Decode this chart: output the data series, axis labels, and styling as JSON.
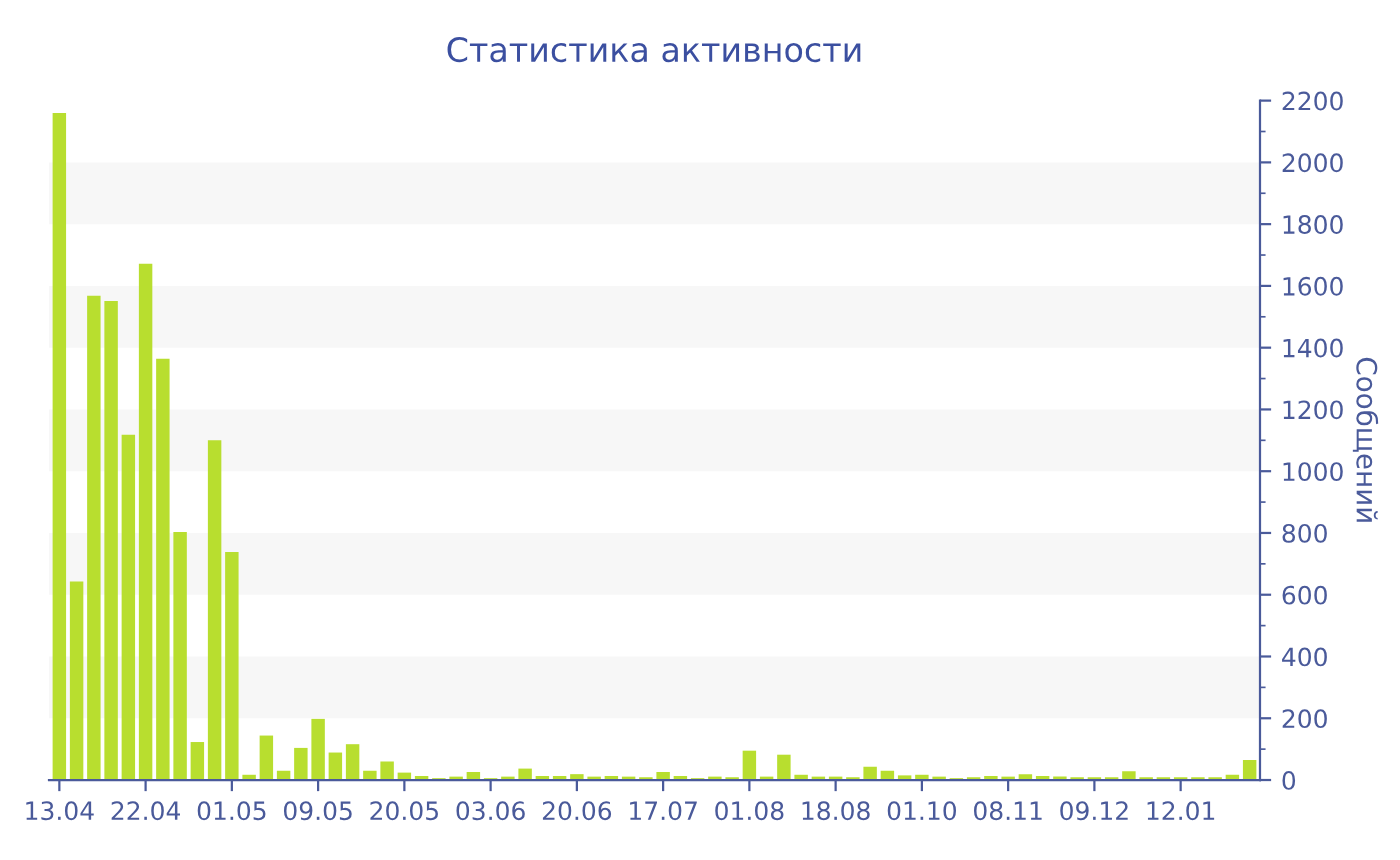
{
  "chart_data": {
    "type": "bar",
    "title": "Статистика активности",
    "ylabel": "Сообщений",
    "categories": [
      "13.04",
      null,
      null,
      null,
      null,
      "22.04",
      null,
      null,
      null,
      null,
      "01.05",
      null,
      null,
      null,
      null,
      "09.05",
      null,
      null,
      null,
      null,
      "20.05",
      null,
      null,
      null,
      null,
      "03.06",
      null,
      null,
      null,
      null,
      "20.06",
      null,
      null,
      null,
      null,
      "17.07",
      null,
      null,
      null,
      null,
      "01.08",
      null,
      null,
      null,
      null,
      "18.08",
      null,
      null,
      null,
      null,
      "01.10",
      null,
      null,
      null,
      null,
      "08.11",
      null,
      null,
      null,
      null,
      "09.12",
      null,
      null,
      null,
      null,
      "12.01",
      null,
      null,
      null,
      null
    ],
    "values": [
      2160,
      643,
      1568,
      1551,
      1118,
      1672,
      1364,
      803,
      123,
      1100,
      738,
      17,
      144,
      30,
      104,
      198,
      89,
      116,
      30,
      60,
      24,
      13,
      6,
      11,
      26,
      6,
      11,
      37,
      13,
      13,
      19,
      11,
      13,
      11,
      9,
      26,
      13,
      6,
      11,
      9,
      95,
      11,
      82,
      17,
      11,
      11,
      9,
      43,
      30,
      15,
      17,
      11,
      6,
      9,
      13,
      11,
      19,
      13,
      11,
      9,
      9,
      9,
      28,
      9,
      9,
      9,
      9,
      9,
      17,
      65
    ],
    "color": "#b8de2f",
    "ylim": [
      0,
      2200
    ],
    "yticks": [
      0,
      200,
      400,
      600,
      800,
      1000,
      1200,
      1400,
      1600,
      1800,
      2000,
      2200
    ],
    "bands": [
      {
        "axis": "y",
        "from": 200,
        "to": 400,
        "color": "#f7f7f7"
      },
      {
        "axis": "y",
        "from": 600,
        "to": 800,
        "color": "#f7f7f7"
      },
      {
        "axis": "y",
        "from": 1000,
        "to": 1200,
        "color": "#f7f7f7"
      },
      {
        "axis": "y",
        "from": 1400,
        "to": 1600,
        "color": "#f7f7f7"
      },
      {
        "axis": "y",
        "from": 1800,
        "to": 2000,
        "color": "#f7f7f7"
      }
    ],
    "grid": false
  }
}
